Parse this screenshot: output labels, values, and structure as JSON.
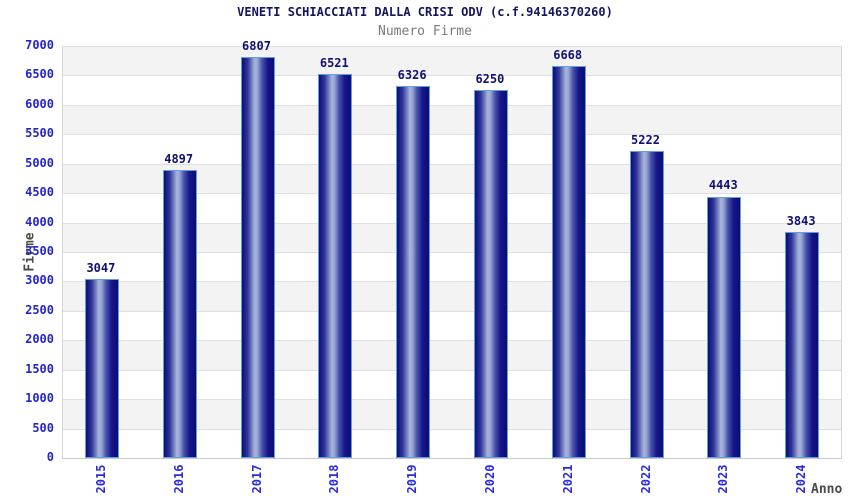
{
  "header": {
    "title": "VENETI SCHIACCIATI DALLA CRISI ODV (c.f.94146370260)",
    "subtitle": "Numero Firme"
  },
  "chart_data": {
    "type": "bar",
    "title": "VENETI SCHIACCIATI DALLA CRISI ODV (c.f.94146370260)",
    "subtitle": "Numero Firme",
    "xlabel": "Anno",
    "ylabel": "Firme",
    "categories": [
      "2015",
      "2016",
      "2017",
      "2018",
      "2019",
      "2020",
      "2021",
      "2022",
      "2023",
      "2024"
    ],
    "values": [
      3047,
      4897,
      6807,
      6521,
      6326,
      6250,
      6668,
      5222,
      4443,
      3843
    ],
    "ylim": [
      0,
      7000
    ],
    "ytick_step": 500,
    "grid": true,
    "legend_position": "none",
    "bar_labels_shown": true,
    "colors": {
      "bar_dark": "#0d0d78",
      "bar_highlight": "#a9b4dc",
      "bar_border": "#5f9fe2",
      "value_label": "#101073",
      "tick_label": "#2424cf",
      "title": "#15155e",
      "subtitle": "#7a7a7a",
      "axis_label": "#4a4a4a",
      "band_gray": "#f3f3f3",
      "band_white": "#ffffff",
      "gridline": "#e0e0e0"
    }
  }
}
